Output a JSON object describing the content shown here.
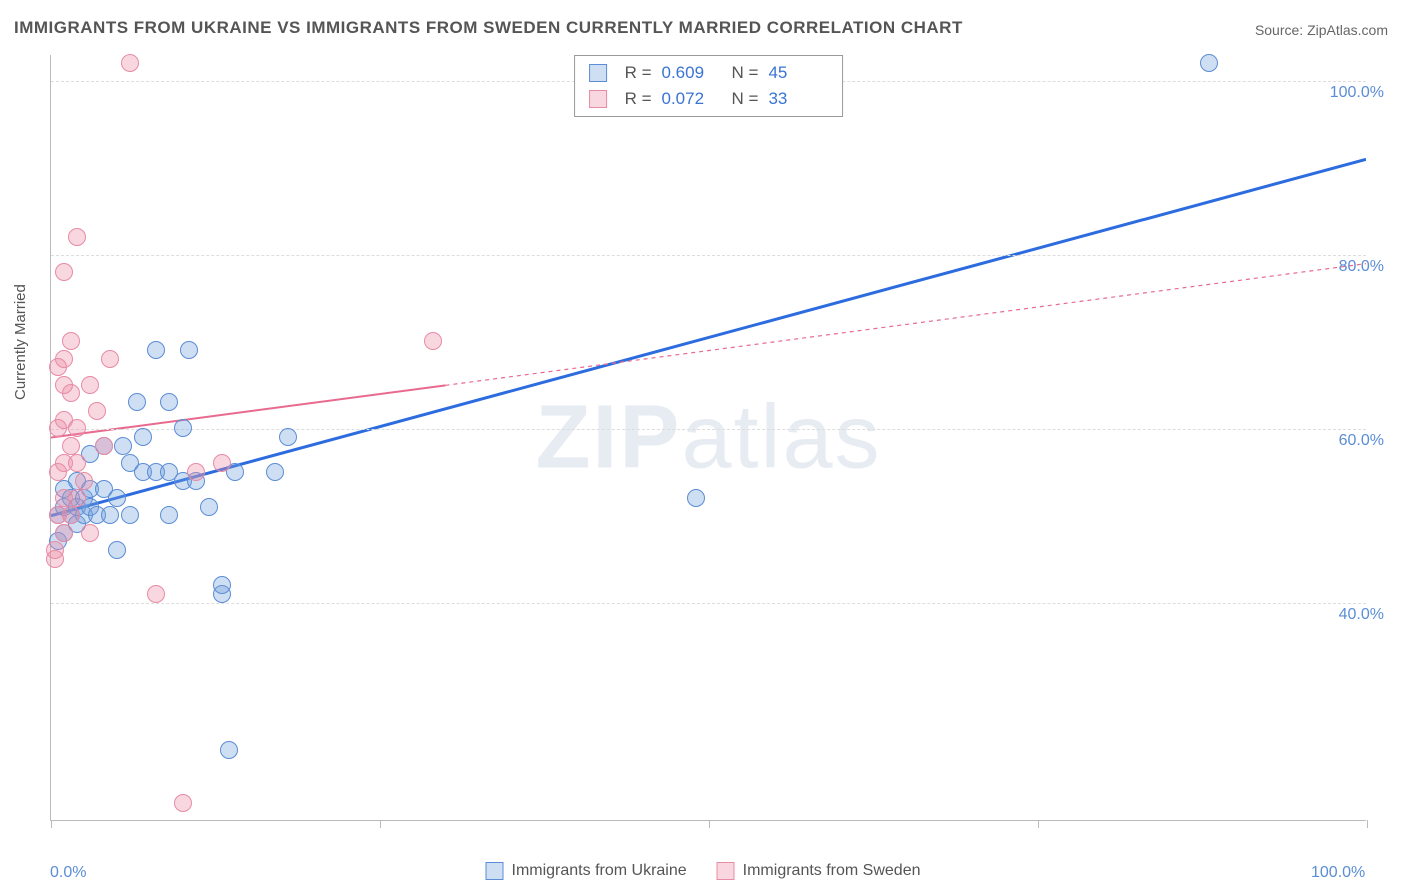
{
  "title": "IMMIGRANTS FROM UKRAINE VS IMMIGRANTS FROM SWEDEN CURRENTLY MARRIED CORRELATION CHART",
  "source": "Source: ZipAtlas.com",
  "y_axis_label": "Currently Married",
  "watermark_bold": "ZIP",
  "watermark_light": "atlas",
  "chart": {
    "type": "scatter",
    "background_color": "#ffffff",
    "grid_color": "#dddddd",
    "axis_color": "#bbbbbb",
    "xlim": [
      0,
      100
    ],
    "ylim": [
      15,
      103
    ],
    "x_ticks": [
      0,
      25,
      50,
      75,
      100
    ],
    "x_tick_labels": {
      "0": "0.0%",
      "100": "100.0%"
    },
    "y_gridlines": [
      40,
      60,
      80,
      100
    ],
    "y_tick_labels": {
      "40": "40.0%",
      "60": "60.0%",
      "80": "80.0%",
      "100": "100.0%"
    },
    "title_fontsize": 17,
    "label_fontsize": 15,
    "tick_fontsize": 16,
    "tick_color": "#5b8dd6"
  },
  "series": [
    {
      "label": "Immigrants from Ukraine",
      "fill_color": "rgba(115,160,220,0.35)",
      "stroke_color": "#5b8dd6",
      "line_color": "#2d6cdf",
      "line_width": 3,
      "line_dash": "none",
      "marker_radius": 9,
      "stats": {
        "R": "0.609",
        "N": "45"
      },
      "trend": {
        "x1": 0,
        "y1": 50,
        "x2": 100,
        "y2": 91
      },
      "points": [
        {
          "x": 0.5,
          "y": 47
        },
        {
          "x": 0.5,
          "y": 50
        },
        {
          "x": 1,
          "y": 48
        },
        {
          "x": 1,
          "y": 51
        },
        {
          "x": 1,
          "y": 53
        },
        {
          "x": 1.5,
          "y": 50
        },
        {
          "x": 1.5,
          "y": 52
        },
        {
          "x": 2,
          "y": 49
        },
        {
          "x": 2,
          "y": 51
        },
        {
          "x": 2,
          "y": 54
        },
        {
          "x": 2.5,
          "y": 50
        },
        {
          "x": 2.5,
          "y": 52
        },
        {
          "x": 3,
          "y": 51
        },
        {
          "x": 3,
          "y": 53
        },
        {
          "x": 3,
          "y": 57
        },
        {
          "x": 3.5,
          "y": 50
        },
        {
          "x": 4,
          "y": 53
        },
        {
          "x": 4,
          "y": 58
        },
        {
          "x": 4.5,
          "y": 50
        },
        {
          "x": 5,
          "y": 46
        },
        {
          "x": 5,
          "y": 52
        },
        {
          "x": 5.5,
          "y": 58
        },
        {
          "x": 6,
          "y": 50
        },
        {
          "x": 6,
          "y": 56
        },
        {
          "x": 6.5,
          "y": 63
        },
        {
          "x": 7,
          "y": 55
        },
        {
          "x": 7,
          "y": 59
        },
        {
          "x": 8,
          "y": 55
        },
        {
          "x": 8,
          "y": 69
        },
        {
          "x": 9,
          "y": 50
        },
        {
          "x": 9,
          "y": 55
        },
        {
          "x": 9,
          "y": 63
        },
        {
          "x": 10,
          "y": 54
        },
        {
          "x": 10,
          "y": 60
        },
        {
          "x": 10.5,
          "y": 69
        },
        {
          "x": 11,
          "y": 54
        },
        {
          "x": 12,
          "y": 51
        },
        {
          "x": 13,
          "y": 41
        },
        {
          "x": 13,
          "y": 42
        },
        {
          "x": 13.5,
          "y": 23
        },
        {
          "x": 14,
          "y": 55
        },
        {
          "x": 17,
          "y": 55
        },
        {
          "x": 18,
          "y": 59
        },
        {
          "x": 49,
          "y": 52
        },
        {
          "x": 88,
          "y": 102
        }
      ]
    },
    {
      "label": "Immigrants from Sweden",
      "fill_color": "rgba(235,140,165,0.35)",
      "stroke_color": "#e88ba5",
      "line_color": "#e86a8e",
      "line_width": 2,
      "line_dash": "4 4",
      "marker_radius": 9,
      "stats": {
        "R": "0.072",
        "N": "33"
      },
      "trend_solid_until": 30,
      "trend": {
        "x1": 0,
        "y1": 59,
        "x2": 100,
        "y2": 79
      },
      "points": [
        {
          "x": 0.3,
          "y": 45
        },
        {
          "x": 0.3,
          "y": 46
        },
        {
          "x": 0.5,
          "y": 50
        },
        {
          "x": 0.5,
          "y": 55
        },
        {
          "x": 0.5,
          "y": 60
        },
        {
          "x": 0.5,
          "y": 67
        },
        {
          "x": 1,
          "y": 48
        },
        {
          "x": 1,
          "y": 52
        },
        {
          "x": 1,
          "y": 56
        },
        {
          "x": 1,
          "y": 61
        },
        {
          "x": 1,
          "y": 65
        },
        {
          "x": 1,
          "y": 68
        },
        {
          "x": 1,
          "y": 78
        },
        {
          "x": 1.5,
          "y": 50
        },
        {
          "x": 1.5,
          "y": 58
        },
        {
          "x": 1.5,
          "y": 64
        },
        {
          "x": 1.5,
          "y": 70
        },
        {
          "x": 2,
          "y": 52
        },
        {
          "x": 2,
          "y": 56
        },
        {
          "x": 2,
          "y": 60
        },
        {
          "x": 2,
          "y": 82
        },
        {
          "x": 2.5,
          "y": 54
        },
        {
          "x": 3,
          "y": 48
        },
        {
          "x": 3,
          "y": 65
        },
        {
          "x": 3.5,
          "y": 62
        },
        {
          "x": 4,
          "y": 58
        },
        {
          "x": 4.5,
          "y": 68
        },
        {
          "x": 6,
          "y": 102
        },
        {
          "x": 8,
          "y": 41
        },
        {
          "x": 10,
          "y": 17
        },
        {
          "x": 11,
          "y": 55
        },
        {
          "x": 13,
          "y": 56
        },
        {
          "x": 29,
          "y": 70
        }
      ]
    }
  ],
  "legend_top": {
    "R_label": "R =",
    "N_label": "N ="
  },
  "bottom_legend_gap": 30
}
